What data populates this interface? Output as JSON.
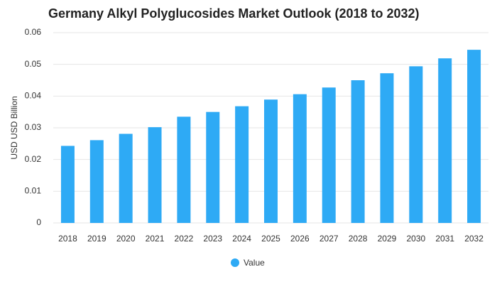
{
  "chart_data": {
    "type": "bar",
    "title": "Germany Alkyl Polyglucosides Market Outlook (2018 to 2032)",
    "y_label": "USD USD Billion",
    "categories": [
      "2018",
      "2019",
      "2020",
      "2021",
      "2022",
      "2023",
      "2024",
      "2025",
      "2026",
      "2027",
      "2028",
      "2029",
      "2030",
      "2031",
      "2032"
    ],
    "series": [
      {
        "name": "Value",
        "color": "#2eaaf5",
        "values": [
          0.0243,
          0.0261,
          0.0281,
          0.0302,
          0.0335,
          0.035,
          0.0368,
          0.0389,
          0.0406,
          0.0427,
          0.045,
          0.0472,
          0.0494,
          0.0519,
          0.0546
        ]
      }
    ],
    "ylim": [
      0,
      0.06
    ],
    "yticks": [
      0,
      0.01,
      0.02,
      0.03,
      0.04,
      0.05,
      0.06
    ],
    "grid": true,
    "legend": "bottom"
  }
}
